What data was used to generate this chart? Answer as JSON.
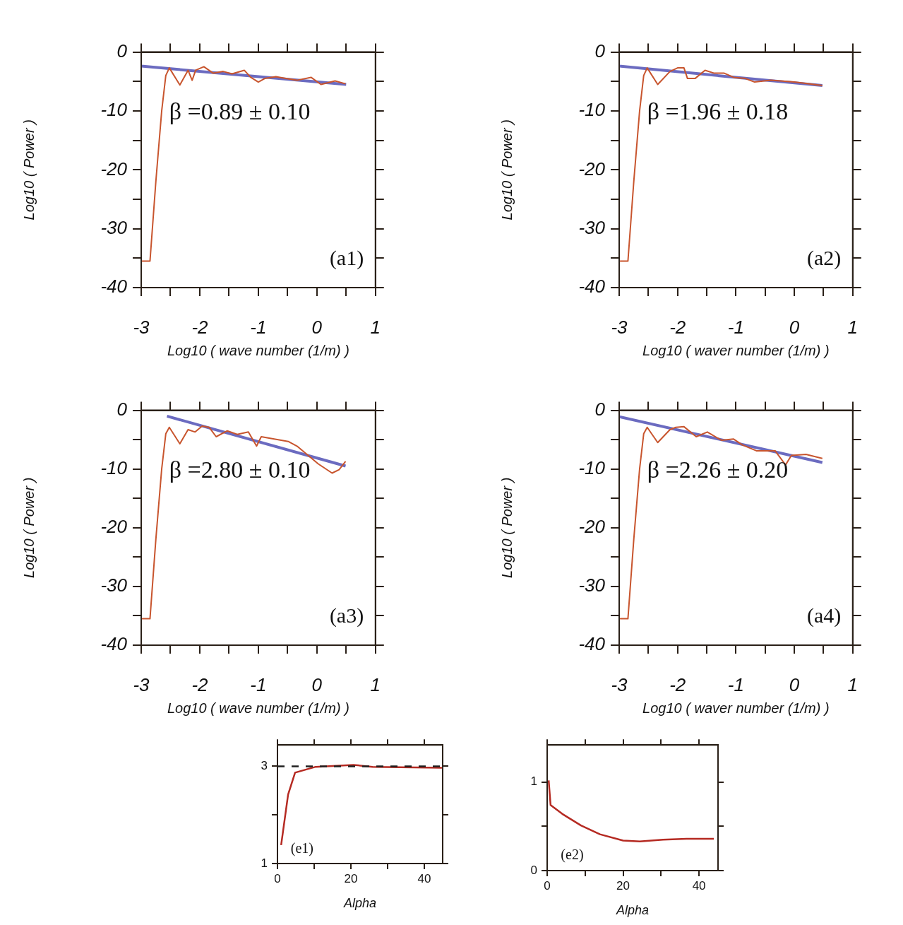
{
  "chart_data": [
    {
      "type": "line",
      "xlabel": "Log10 ( wave number (1/m) )",
      "ylabel": "Log10 ( Power )",
      "xlim": [
        -3,
        1
      ],
      "ylim": [
        -40,
        0
      ],
      "xticks": [
        -3,
        {
          "value": -2.5,
          "label": null
        },
        -2,
        {
          "value": -1.5,
          "label": null
        },
        -1,
        {
          "value": -0.5,
          "label": null
        },
        0,
        {
          "value": 0.5,
          "label": null
        },
        1
      ],
      "yticks": [
        -40,
        {
          "value": -35,
          "label": null
        },
        -30,
        {
          "value": -25,
          "label": null
        },
        -20,
        {
          "value": -15,
          "label": null
        },
        -10,
        {
          "value": -5,
          "label": null
        },
        0
      ],
      "grid": false,
      "marker": "none",
      "annotations": [
        "β =0.89 ± 0.10",
        "(a1)"
      ],
      "series": [
        {
          "type": "line",
          "color": "#c8552e",
          "x": [
            -3,
            -2.85,
            -2.75,
            -2.65,
            -2.58,
            -2.52,
            -2.34,
            -2.2,
            -2.13,
            -2.07,
            -1.93,
            -1.77,
            -1.6,
            -1.45,
            -1.24,
            -1.13,
            -1,
            -0.89,
            -0.7,
            -0.53,
            -0.34,
            -0.1,
            0.07,
            0.31,
            0.49
          ],
          "values": [
            -35.5,
            -35.5,
            -22,
            -10,
            -4,
            -2.7,
            -5.6,
            -3.1,
            -4.8,
            -3.1,
            -2.5,
            -3.6,
            -3.3,
            -3.7,
            -3.1,
            -4.3,
            -5.1,
            -4.5,
            -4.2,
            -4.5,
            -4.8,
            -4.3,
            -5.5,
            -4.9,
            -5.4
          ]
        },
        {
          "type": "line",
          "color": "#6b6bc0",
          "x": [
            -3,
            0.5
          ],
          "values": [
            -2.4,
            -5.5
          ]
        }
      ]
    },
    {
      "type": "line",
      "xlabel": "Log10 ( waver number (1/m) )",
      "ylabel": "Log10 ( Power )",
      "xlim": [
        -3,
        1
      ],
      "ylim": [
        -40,
        0
      ],
      "xticks": [
        -3,
        {
          "value": -2.5,
          "label": null
        },
        -2,
        {
          "value": -1.5,
          "label": null
        },
        -1,
        {
          "value": -0.5,
          "label": null
        },
        0,
        {
          "value": 0.5,
          "label": null
        },
        1
      ],
      "yticks": [
        -40,
        {
          "value": -35,
          "label": null
        },
        -30,
        {
          "value": -25,
          "label": null
        },
        -20,
        {
          "value": -15,
          "label": null
        },
        -10,
        {
          "value": -5,
          "label": null
        },
        0
      ],
      "grid": false,
      "marker": "none",
      "annotations": [
        "β =1.96 ± 0.18",
        "(a2)"
      ],
      "series": [
        {
          "type": "line",
          "color": "#c8552e",
          "x": [
            -3,
            -2.85,
            -2.75,
            -2.65,
            -2.58,
            -2.52,
            -2.34,
            -2.13,
            -2,
            -1.89,
            -1.83,
            -1.7,
            -1.53,
            -1.37,
            -1.2,
            -1.04,
            -0.84,
            -0.68,
            -0.4,
            0,
            0.48
          ],
          "values": [
            -35.5,
            -35.5,
            -22,
            -10,
            -4,
            -2.7,
            -5.5,
            -3.3,
            -2.7,
            -2.7,
            -4.5,
            -4.5,
            -3.1,
            -3.6,
            -3.6,
            -4.3,
            -4.5,
            -5.1,
            -4.8,
            -5.1,
            -5.7
          ]
        },
        {
          "type": "line",
          "color": "#6b6bc0",
          "x": [
            -3,
            0.48
          ],
          "values": [
            -2.4,
            -5.7
          ]
        }
      ]
    },
    {
      "type": "line",
      "xlabel": "Log10 ( wave number (1/m) )",
      "ylabel": "Log10 ( Power )",
      "xlim": [
        -3,
        1
      ],
      "ylim": [
        -40,
        0
      ],
      "xticks": [
        -3,
        {
          "value": -2.5,
          "label": null
        },
        -2,
        {
          "value": -1.5,
          "label": null
        },
        -1,
        {
          "value": -0.5,
          "label": null
        },
        0,
        {
          "value": 0.5,
          "label": null
        },
        1
      ],
      "yticks": [
        -40,
        {
          "value": -35,
          "label": null
        },
        -30,
        {
          "value": -25,
          "label": null
        },
        -20,
        {
          "value": -15,
          "label": null
        },
        -10,
        {
          "value": -5,
          "label": null
        },
        0
      ],
      "grid": false,
      "marker": "none",
      "annotations": [
        "β =2.80 ± 0.10",
        "(a3)"
      ],
      "series": [
        {
          "type": "line",
          "color": "#c8552e",
          "x": [
            -3,
            -2.85,
            -2.75,
            -2.65,
            -2.58,
            -2.52,
            -2.34,
            -2.2,
            -2.08,
            -1.96,
            -1.84,
            -1.72,
            -1.53,
            -1.36,
            -1.17,
            -1.03,
            -0.95,
            -0.73,
            -0.49,
            -0.34,
            -0.17,
            0.02,
            0.26,
            0.38,
            0.49
          ],
          "values": [
            -35.5,
            -35.5,
            -22,
            -10,
            -4,
            -2.9,
            -5.7,
            -3.3,
            -3.7,
            -2.7,
            -2.9,
            -4.5,
            -3.5,
            -4.1,
            -3.7,
            -6.1,
            -4.5,
            -4.9,
            -5.3,
            -6.1,
            -7.5,
            -9.1,
            -10.7,
            -10.1,
            -8.7
          ]
        },
        {
          "type": "line",
          "color": "#6b6bc0",
          "x": [
            -2.56,
            0.49
          ],
          "values": [
            -1,
            -9.5
          ]
        }
      ]
    },
    {
      "type": "line",
      "xlabel": "Log10 ( waver number (1/m) )",
      "ylabel": "Log10 ( Power )",
      "xlim": [
        -3,
        1
      ],
      "ylim": [
        -40,
        0
      ],
      "xticks": [
        -3,
        {
          "value": -2.5,
          "label": null
        },
        -2,
        {
          "value": -1.5,
          "label": null
        },
        -1,
        {
          "value": -0.5,
          "label": null
        },
        0,
        {
          "value": 0.5,
          "label": null
        },
        1
      ],
      "yticks": [
        -40,
        {
          "value": -35,
          "label": null
        },
        -30,
        {
          "value": -25,
          "label": null
        },
        -20,
        {
          "value": -15,
          "label": null
        },
        -10,
        {
          "value": -5,
          "label": null
        },
        0
      ],
      "grid": false,
      "marker": "none",
      "annotations": [
        "β =2.26 ± 0.20",
        "(a4)"
      ],
      "series": [
        {
          "type": "line",
          "color": "#c8552e",
          "x": [
            -3,
            -2.85,
            -2.75,
            -2.65,
            -2.58,
            -2.52,
            -2.34,
            -2.13,
            -2.03,
            -1.89,
            -1.68,
            -1.49,
            -1.25,
            -1.04,
            -0.89,
            -0.65,
            -0.33,
            -0.15,
            -0.05,
            0.2,
            0.48
          ],
          "values": [
            -35.5,
            -35.5,
            -22,
            -10,
            -4,
            -2.9,
            -5.5,
            -3.3,
            -2.9,
            -2.8,
            -4.5,
            -3.7,
            -5.1,
            -4.9,
            -5.9,
            -6.9,
            -6.9,
            -9.3,
            -7.7,
            -7.5,
            -8.2
          ]
        },
        {
          "type": "line",
          "color": "#6b6bc0",
          "x": [
            -3,
            0.48
          ],
          "values": [
            -1.1,
            -8.9
          ]
        }
      ]
    },
    {
      "type": "line",
      "xlabel": "Alpha",
      "xlim": [
        0,
        45
      ],
      "ylim": [
        1,
        3.44
      ],
      "xticks": [
        0,
        {
          "value": 10,
          "label": null
        },
        20,
        {
          "value": 30,
          "label": null
        },
        40
      ],
      "yticks": [
        1,
        {
          "value": 2,
          "label": null
        },
        3
      ],
      "grid": false,
      "marker": "none",
      "annotations": [
        "(e1)"
      ],
      "ref_lines": [
        {
          "axis": "y",
          "value": 3,
          "color": "#202020",
          "line_style": "dashed"
        }
      ],
      "series": [
        {
          "type": "line",
          "color": "#b52a22",
          "x": [
            1,
            2.9,
            4.8,
            10.4,
            20.7,
            25.9,
            44.8
          ],
          "values": [
            1.38,
            2.42,
            2.87,
            2.99,
            3.03,
            2.99,
            2.97
          ]
        }
      ]
    },
    {
      "type": "line",
      "xlabel": "Alpha",
      "xlim": [
        0,
        45
      ],
      "ylim": [
        0,
        1.42
      ],
      "xticks": [
        0,
        {
          "value": 10,
          "label": null
        },
        20,
        {
          "value": 30,
          "label": null
        },
        40
      ],
      "yticks": [
        0,
        {
          "value": 0.5,
          "label": null
        },
        1
      ],
      "grid": false,
      "marker": "none",
      "annotations": [
        "(e2)"
      ],
      "series": [
        {
          "type": "line",
          "color": "#b52a22",
          "x": [
            0.4,
            0.9,
            4,
            8.9,
            13.9,
            20,
            24.4,
            30.5,
            36.7,
            43.9
          ],
          "values": [
            1.02,
            0.74,
            0.64,
            0.51,
            0.41,
            0.34,
            0.33,
            0.35,
            0.36,
            0.36
          ]
        }
      ]
    }
  ]
}
